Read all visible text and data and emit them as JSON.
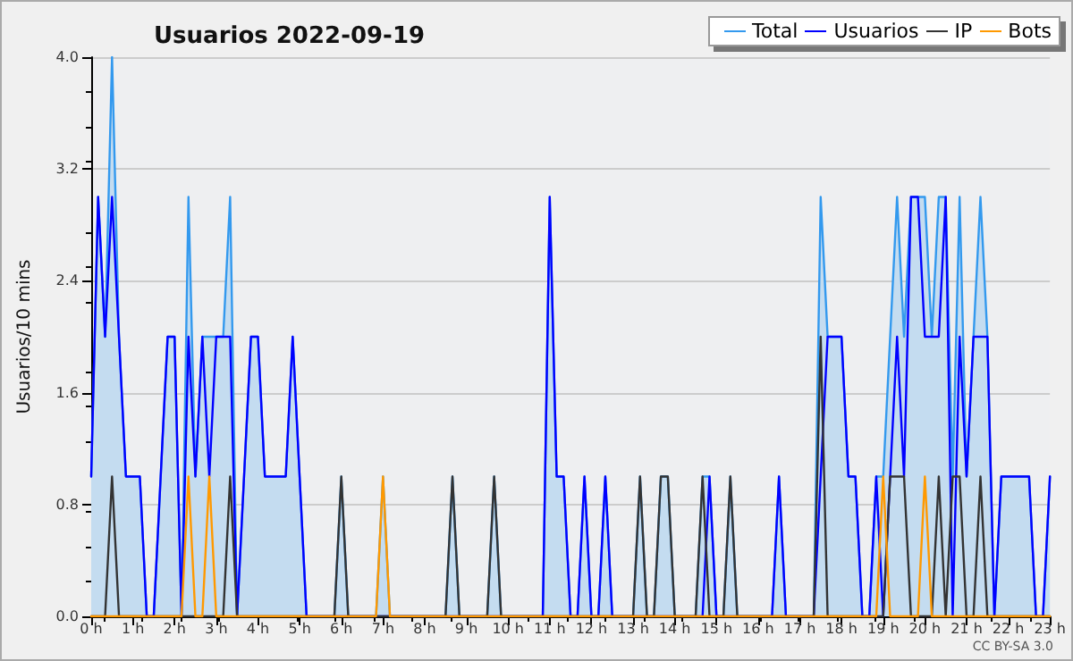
{
  "chart_data": {
    "type": "line",
    "title": "Usuarios 2022-09-19",
    "ylabel": "Usuarios/10 mins",
    "x": [
      "2022-09-19T00:00",
      "2022-09-19T00:10",
      "2022-09-19T00:20",
      "2022-09-19T00:30",
      "2022-09-19T00:40",
      "2022-09-19T00:50",
      "2022-09-19T01:00",
      "2022-09-19T01:10",
      "2022-09-19T01:20",
      "2022-09-19T01:30",
      "2022-09-19T01:40",
      "2022-09-19T01:50",
      "2022-09-19T02:00",
      "2022-09-19T02:10",
      "2022-09-19T02:20",
      "2022-09-19T02:30",
      "2022-09-19T02:40",
      "2022-09-19T02:50",
      "2022-09-19T03:00",
      "2022-09-19T03:10",
      "2022-09-19T03:20",
      "2022-09-19T03:30",
      "2022-09-19T03:40",
      "2022-09-19T03:50",
      "2022-09-19T04:00",
      "2022-09-19T04:10",
      "2022-09-19T04:20",
      "2022-09-19T04:30",
      "2022-09-19T04:40",
      "2022-09-19T04:50",
      "2022-09-19T05:00",
      "2022-09-19T05:10",
      "2022-09-19T05:20",
      "2022-09-19T05:30",
      "2022-09-19T05:40",
      "2022-09-19T05:50",
      "2022-09-19T06:00",
      "2022-09-19T06:10",
      "2022-09-19T06:20",
      "2022-09-19T06:30",
      "2022-09-19T06:40",
      "2022-09-19T06:50",
      "2022-09-19T07:00",
      "2022-09-19T07:10",
      "2022-09-19T07:20",
      "2022-09-19T07:30",
      "2022-09-19T07:40",
      "2022-09-19T07:50",
      "2022-09-19T08:00",
      "2022-09-19T08:10",
      "2022-09-19T08:20",
      "2022-09-19T08:30",
      "2022-09-19T08:40",
      "2022-09-19T08:50",
      "2022-09-19T09:00",
      "2022-09-19T09:10",
      "2022-09-19T09:20",
      "2022-09-19T09:30",
      "2022-09-19T09:40",
      "2022-09-19T09:50",
      "2022-09-19T10:00",
      "2022-09-19T10:10",
      "2022-09-19T10:20",
      "2022-09-19T10:30",
      "2022-09-19T10:40",
      "2022-09-19T10:50",
      "2022-09-19T11:00",
      "2022-09-19T11:10",
      "2022-09-19T11:20",
      "2022-09-19T11:30",
      "2022-09-19T11:40",
      "2022-09-19T11:50",
      "2022-09-19T12:00",
      "2022-09-19T12:10",
      "2022-09-19T12:20",
      "2022-09-19T12:30",
      "2022-09-19T12:40",
      "2022-09-19T12:50",
      "2022-09-19T13:00",
      "2022-09-19T13:10",
      "2022-09-19T13:20",
      "2022-09-19T13:30",
      "2022-09-19T13:40",
      "2022-09-19T13:50",
      "2022-09-19T14:00",
      "2022-09-19T14:10",
      "2022-09-19T14:20",
      "2022-09-19T14:30",
      "2022-09-19T14:40",
      "2022-09-19T14:50",
      "2022-09-19T15:00",
      "2022-09-19T15:10",
      "2022-09-19T15:20",
      "2022-09-19T15:30",
      "2022-09-19T15:40",
      "2022-09-19T15:50",
      "2022-09-19T16:00",
      "2022-09-19T16:10",
      "2022-09-19T16:20",
      "2022-09-19T16:30",
      "2022-09-19T16:40",
      "2022-09-19T16:50",
      "2022-09-19T17:00",
      "2022-09-19T17:10",
      "2022-09-19T17:20",
      "2022-09-19T17:30",
      "2022-09-19T17:40",
      "2022-09-19T17:50",
      "2022-09-19T18:00",
      "2022-09-19T18:10",
      "2022-09-19T18:20",
      "2022-09-19T18:30",
      "2022-09-19T18:40",
      "2022-09-19T18:50",
      "2022-09-19T19:00",
      "2022-09-19T19:10",
      "2022-09-19T19:20",
      "2022-09-19T19:30",
      "2022-09-19T19:40",
      "2022-09-19T19:50",
      "2022-09-19T20:00",
      "2022-09-19T20:10",
      "2022-09-19T20:20",
      "2022-09-19T20:30",
      "2022-09-19T20:40",
      "2022-09-19T20:50",
      "2022-09-19T21:00",
      "2022-09-19T21:10",
      "2022-09-19T21:20",
      "2022-09-19T21:30",
      "2022-09-19T21:40",
      "2022-09-19T21:50",
      "2022-09-19T22:00",
      "2022-09-19T22:10",
      "2022-09-19T22:20",
      "2022-09-19T22:30",
      "2022-09-19T22:40",
      "2022-09-19T22:50",
      "2022-09-19T23:00"
    ],
    "series": [
      {
        "name": "Total",
        "type": "area",
        "color": "#3399ee",
        "values": [
          1,
          3,
          2,
          4,
          2,
          1,
          1,
          1,
          0,
          0,
          1,
          2,
          2,
          0,
          3,
          1,
          2,
          2,
          2,
          2,
          3,
          0,
          1,
          2,
          2,
          1,
          1,
          1,
          1,
          2,
          1,
          0,
          0,
          0,
          0,
          0,
          1,
          0,
          0,
          0,
          0,
          0,
          1,
          0,
          0,
          0,
          0,
          0,
          0,
          0,
          0,
          0,
          1,
          0,
          0,
          0,
          0,
          0,
          1,
          0,
          0,
          0,
          0,
          0,
          0,
          0,
          3,
          1,
          1,
          0,
          0,
          1,
          0,
          0,
          1,
          0,
          0,
          0,
          0,
          1,
          0,
          0,
          1,
          1,
          0,
          0,
          0,
          0,
          1,
          1,
          0,
          0,
          1,
          0,
          0,
          0,
          0,
          0,
          0,
          1,
          0,
          0,
          0,
          0,
          0,
          3,
          2,
          2,
          2,
          1,
          1,
          0,
          0,
          1,
          1,
          2,
          3,
          2,
          3,
          3,
          3,
          2,
          3,
          3,
          1,
          3,
          1,
          2,
          3,
          2,
          0,
          1,
          1,
          1,
          1,
          1,
          0,
          0,
          1
        ]
      },
      {
        "name": "Usuarios",
        "type": "line",
        "color": "#0000ff",
        "values": [
          1,
          3,
          2,
          3,
          2,
          1,
          1,
          1,
          0,
          0,
          1,
          2,
          2,
          0,
          2,
          1,
          2,
          1,
          2,
          2,
          2,
          0,
          1,
          2,
          2,
          1,
          1,
          1,
          1,
          2,
          1,
          0,
          0,
          0,
          0,
          0,
          0,
          0,
          0,
          0,
          0,
          0,
          0,
          0,
          0,
          0,
          0,
          0,
          0,
          0,
          0,
          0,
          0,
          0,
          0,
          0,
          0,
          0,
          0,
          0,
          0,
          0,
          0,
          0,
          0,
          0,
          3,
          1,
          1,
          0,
          0,
          1,
          0,
          0,
          1,
          0,
          0,
          0,
          0,
          0,
          0,
          0,
          0,
          0,
          0,
          0,
          0,
          0,
          0,
          1,
          0,
          0,
          0,
          0,
          0,
          0,
          0,
          0,
          0,
          1,
          0,
          0,
          0,
          0,
          0,
          1,
          2,
          2,
          2,
          1,
          1,
          0,
          0,
          1,
          0,
          1,
          2,
          1,
          3,
          3,
          2,
          2,
          2,
          3,
          0,
          2,
          1,
          2,
          2,
          2,
          0,
          1,
          1,
          1,
          1,
          1,
          0,
          0,
          1
        ]
      },
      {
        "name": "IP",
        "type": "line",
        "color": "#333333",
        "values": [
          0,
          0,
          0,
          1,
          0,
          0,
          0,
          0,
          0,
          0,
          0,
          0,
          0,
          0,
          0,
          0,
          0,
          0,
          0,
          0,
          1,
          0,
          0,
          0,
          0,
          0,
          0,
          0,
          0,
          0,
          0,
          0,
          0,
          0,
          0,
          0,
          1,
          0,
          0,
          0,
          0,
          0,
          0,
          0,
          0,
          0,
          0,
          0,
          0,
          0,
          0,
          0,
          1,
          0,
          0,
          0,
          0,
          0,
          1,
          0,
          0,
          0,
          0,
          0,
          0,
          0,
          0,
          0,
          0,
          0,
          0,
          0,
          0,
          0,
          0,
          0,
          0,
          0,
          0,
          1,
          0,
          0,
          1,
          1,
          0,
          0,
          0,
          0,
          1,
          0,
          0,
          0,
          1,
          0,
          0,
          0,
          0,
          0,
          0,
          0,
          0,
          0,
          0,
          0,
          0,
          2,
          0,
          0,
          0,
          0,
          0,
          0,
          0,
          0,
          0,
          1,
          1,
          1,
          0,
          0,
          0,
          0,
          1,
          0,
          1,
          1,
          0,
          0,
          1,
          0,
          0,
          0,
          0,
          0,
          0,
          0,
          0,
          0,
          0
        ]
      },
      {
        "name": "Bots",
        "type": "line",
        "color": "#ff9900",
        "values": [
          0,
          0,
          0,
          0,
          0,
          0,
          0,
          0,
          0,
          0,
          0,
          0,
          0,
          0,
          1,
          0,
          0,
          1,
          0,
          0,
          0,
          0,
          0,
          0,
          0,
          0,
          0,
          0,
          0,
          0,
          0,
          0,
          0,
          0,
          0,
          0,
          0,
          0,
          0,
          0,
          0,
          0,
          1,
          0,
          0,
          0,
          0,
          0,
          0,
          0,
          0,
          0,
          0,
          0,
          0,
          0,
          0,
          0,
          0,
          0,
          0,
          0,
          0,
          0,
          0,
          0,
          0,
          0,
          0,
          0,
          0,
          0,
          0,
          0,
          0,
          0,
          0,
          0,
          0,
          0,
          0,
          0,
          0,
          0,
          0,
          0,
          0,
          0,
          0,
          0,
          0,
          0,
          0,
          0,
          0,
          0,
          0,
          0,
          0,
          0,
          0,
          0,
          0,
          0,
          0,
          0,
          0,
          0,
          0,
          0,
          0,
          0,
          0,
          0,
          1,
          0,
          0,
          0,
          0,
          0,
          1,
          0,
          0,
          0,
          0,
          0,
          0,
          0,
          0,
          0,
          0,
          0,
          0,
          0,
          0,
          0,
          0,
          0,
          0
        ]
      }
    ],
    "xlim": [
      "2022-09-19T00:00",
      "2022-09-19T23:00"
    ],
    "xticks": [
      {
        "value": "2022-09-19T00:00",
        "label": "0 h"
      },
      {
        "value": "2022-09-19T01:00",
        "label": "1 h"
      },
      {
        "value": "2022-09-19T02:00",
        "label": "2 h"
      },
      {
        "value": "2022-09-19T03:00",
        "label": "3 h"
      },
      {
        "value": "2022-09-19T04:00",
        "label": "4 h"
      },
      {
        "value": "2022-09-19T05:00",
        "label": "5 h"
      },
      {
        "value": "2022-09-19T06:00",
        "label": "6 h"
      },
      {
        "value": "2022-09-19T07:00",
        "label": "7 h"
      },
      {
        "value": "2022-09-19T08:00",
        "label": "8 h"
      },
      {
        "value": "2022-09-19T09:00",
        "label": "9 h"
      },
      {
        "value": "2022-09-19T10:00",
        "label": "10 h"
      },
      {
        "value": "2022-09-19T11:00",
        "label": "11 h"
      },
      {
        "value": "2022-09-19T12:00",
        "label": "12 h"
      },
      {
        "value": "2022-09-19T13:00",
        "label": "13 h"
      },
      {
        "value": "2022-09-19T14:00",
        "label": "14 h"
      },
      {
        "value": "2022-09-19T15:00",
        "label": "15 h"
      },
      {
        "value": "2022-09-19T16:00",
        "label": "16 h"
      },
      {
        "value": "2022-09-19T17:00",
        "label": "17 h"
      },
      {
        "value": "2022-09-19T18:00",
        "label": "18 h"
      },
      {
        "value": "2022-09-19T19:00",
        "label": "19 h"
      },
      {
        "value": "2022-09-19T20:00",
        "label": "20 h"
      },
      {
        "value": "2022-09-19T21:00",
        "label": "21 h"
      },
      {
        "value": "2022-09-19T22:00",
        "label": "22 h"
      },
      {
        "value": "2022-09-19T23:00",
        "label": "23 h"
      }
    ],
    "ylim": [
      0,
      4
    ],
    "yticks": [
      {
        "value": 0,
        "label": "0.0"
      },
      {
        "value": 0.8,
        "label": "0.8"
      },
      {
        "value": 1.6,
        "label": "1.6"
      },
      {
        "value": 2.4,
        "label": "2.4"
      },
      {
        "value": 3.2,
        "label": "3.2"
      },
      {
        "value": 4,
        "label": "4.0"
      }
    ],
    "grid": "y",
    "legend": "top right",
    "marker": "none",
    "annotations": [
      "CC BY-SA 3.0"
    ]
  }
}
